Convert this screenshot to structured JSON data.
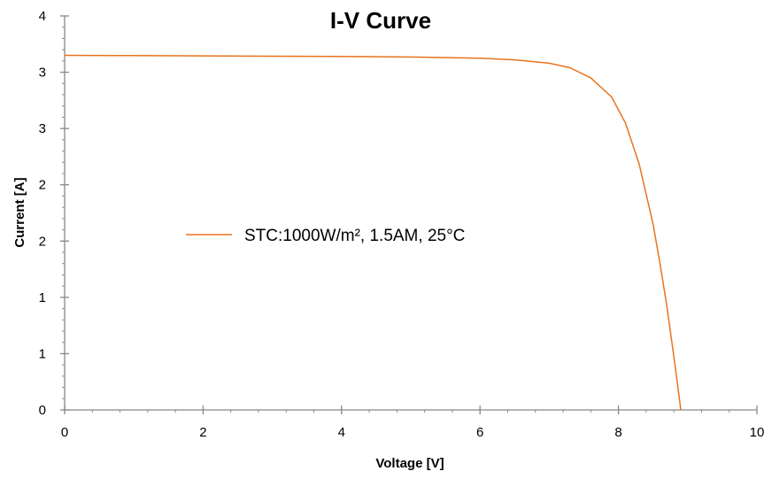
{
  "chart_data": {
    "type": "line",
    "title": "I-V Curve",
    "xlabel": "Voltage [V]",
    "ylabel": "Current [A]",
    "xlim": [
      0,
      10
    ],
    "ylim": [
      0,
      3.5
    ],
    "x_ticks": [
      {
        "value": 0,
        "label": "0"
      },
      {
        "value": 2,
        "label": "2"
      },
      {
        "value": 4,
        "label": "4"
      },
      {
        "value": 6,
        "label": "6"
      },
      {
        "value": 8,
        "label": "8"
      },
      {
        "value": 10,
        "label": "10"
      }
    ],
    "y_ticks": [
      {
        "value": 0,
        "label": "0"
      },
      {
        "value": 0.5,
        "label": "1"
      },
      {
        "value": 1.0,
        "label": "1"
      },
      {
        "value": 1.5,
        "label": "2"
      },
      {
        "value": 2.0,
        "label": "2"
      },
      {
        "value": 2.5,
        "label": "3"
      },
      {
        "value": 3.0,
        "label": "3"
      },
      {
        "value": 3.5,
        "label": "4"
      }
    ],
    "grid": false,
    "legend_position": "center-left",
    "series": [
      {
        "name": "STC:1000W/m², 1.5AM, 25°C",
        "color": "#E8731C",
        "x": [
          0,
          1,
          2,
          3,
          4,
          5,
          6,
          6.5,
          7.0,
          7.3,
          7.6,
          7.9,
          8.1,
          8.3,
          8.5,
          8.6,
          8.7,
          8.8,
          8.85,
          8.9
        ],
        "y": [
          3.15,
          3.148,
          3.145,
          3.142,
          3.14,
          3.135,
          3.125,
          3.11,
          3.08,
          3.04,
          2.95,
          2.78,
          2.55,
          2.18,
          1.65,
          1.3,
          0.92,
          0.47,
          0.24,
          0.0
        ]
      }
    ]
  }
}
